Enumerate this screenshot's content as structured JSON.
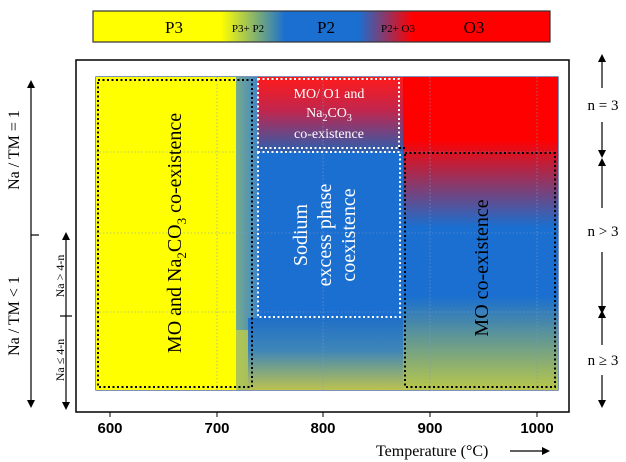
{
  "legend": {
    "phases": [
      {
        "label": "P3",
        "color": "#ffff00"
      },
      {
        "label": "P3+ P2",
        "color": "#b5d23a"
      },
      {
        "label": "P2",
        "color": "#1a6fd0"
      },
      {
        "label": "P2+ O3",
        "color": "#8a3c8a"
      },
      {
        "label": "O3",
        "color": "#ff0000"
      }
    ]
  },
  "axes": {
    "x_title": "Temperature (°C)",
    "x_ticks": [
      "600",
      "700",
      "800",
      "900",
      "1000"
    ],
    "x_range": [
      570,
      1025
    ]
  },
  "regions": {
    "mo_na2co3": {
      "pre": "MO and Na",
      "sub": "2",
      "post": "CO",
      "sub2": "3",
      "post2": " co-existence"
    },
    "mo_o1": {
      "line1": "MO/ O1 and",
      "line2_pre": "Na",
      "line2_sub": "2",
      "line2_mid": "CO",
      "line2_sub2": "3",
      "line3": "co-existence"
    },
    "sodium_excess": {
      "line1": "Sodium",
      "line2": "excess phase",
      "line3": "coexistence"
    },
    "mo_coexist": {
      "label": "MO co-existence"
    }
  },
  "left_labels": {
    "na_tm_eq": "Na / TM = 1",
    "na_tm_lt": "Na / TM < 1",
    "na_gt": "Na > 4-n",
    "na_le": "Na ≤ 4-n"
  },
  "right_labels": {
    "n_eq3": "n = 3",
    "n_gt3": "n > 3",
    "n_ge3": "n ≥ 3"
  },
  "colors": {
    "yellow": "#ffff00",
    "blue": "#1a6fd0",
    "red": "#ff0000",
    "olive": "#9bb24a"
  }
}
